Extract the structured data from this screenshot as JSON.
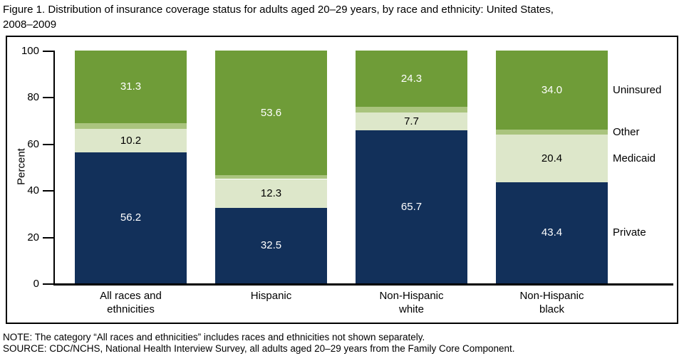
{
  "title": {
    "line1": "Figure 1. Distribution of insurance coverage status for adults aged 20–29 years, by race and ethnicity: United States,",
    "line2": "2008–2009"
  },
  "notes": {
    "note": "NOTE: The category “All races and ethnicities” includes races and ethnicities not shown separately.",
    "source": "SOURCE: CDC/NCHS, National Health Interview Survey, all adults aged 20–29 years from the Family Core Component."
  },
  "chart_data": {
    "type": "bar",
    "stacked": true,
    "title": "Figure 1. Distribution of insurance coverage status for adults aged 20–29 years, by race and ethnicity: United States, 2008–2009",
    "ylabel": "Percent",
    "ylim": [
      0,
      100
    ],
    "yticks": [
      0,
      20,
      40,
      60,
      80,
      100
    ],
    "grid": false,
    "legend_position": "right-of-last-bar",
    "categories": [
      "All races and\nethnicities",
      "Hispanic",
      "Non-Hispanic\nwhite",
      "Non-Hispanic\nblack"
    ],
    "series": [
      {
        "name": "Private",
        "values": [
          56.2,
          32.5,
          65.7,
          43.4
        ],
        "color": "#12305a",
        "label_color": "#ffffff",
        "show_values": true
      },
      {
        "name": "Medicaid",
        "values": [
          10.2,
          12.3,
          7.7,
          20.4
        ],
        "color": "#dde7ca",
        "label_color": "#000000",
        "show_values": true
      },
      {
        "name": "Other",
        "values": [
          2.3,
          1.6,
          2.3,
          2.2
        ],
        "color": "#aac47e",
        "label_color": "#000000",
        "show_values": false
      },
      {
        "name": "Uninsured",
        "values": [
          31.3,
          53.6,
          24.3,
          34.0
        ],
        "color": "#6f9c38",
        "label_color": "#ffffff",
        "show_values": true
      }
    ],
    "legend_labels": [
      "Uninsured",
      "Other",
      "Medicaid",
      "Private"
    ]
  }
}
